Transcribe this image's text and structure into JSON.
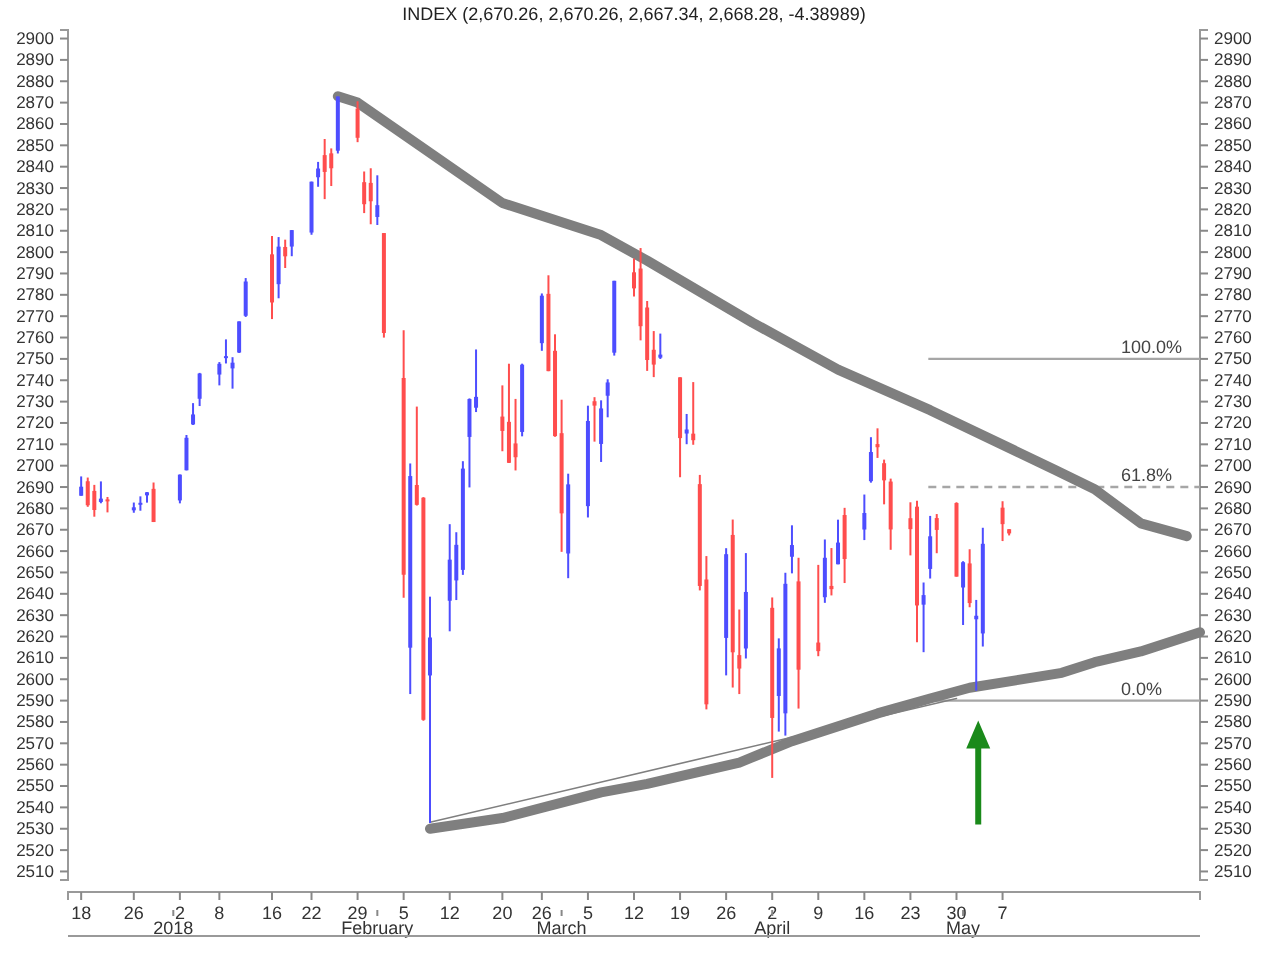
{
  "chart_data": {
    "type": "candlestick",
    "title": "INDEX (2,670.26, 2,670.26, 2,667.34, 2,668.28, -4.38989)",
    "x": [
      "2017-12-18",
      "2017-12-19",
      "2017-12-20",
      "2017-12-21",
      "2017-12-22",
      "2017-12-26",
      "2017-12-27",
      "2017-12-28",
      "2017-12-29",
      "2018-01-02",
      "2018-01-03",
      "2018-01-04",
      "2018-01-05",
      "2018-01-08",
      "2018-01-09",
      "2018-01-10",
      "2018-01-11",
      "2018-01-12",
      "2018-01-16",
      "2018-01-17",
      "2018-01-18",
      "2018-01-19",
      "2018-01-22",
      "2018-01-23",
      "2018-01-24",
      "2018-01-25",
      "2018-01-26",
      "2018-01-29",
      "2018-01-30",
      "2018-01-31",
      "2018-02-01",
      "2018-02-02",
      "2018-02-05",
      "2018-02-06",
      "2018-02-07",
      "2018-02-08",
      "2018-02-09",
      "2018-02-12",
      "2018-02-13",
      "2018-02-14",
      "2018-02-15",
      "2018-02-16",
      "2018-02-20",
      "2018-02-21",
      "2018-02-22",
      "2018-02-23",
      "2018-02-26",
      "2018-02-27",
      "2018-02-28",
      "2018-03-01",
      "2018-03-02",
      "2018-03-05",
      "2018-03-06",
      "2018-03-07",
      "2018-03-08",
      "2018-03-09",
      "2018-03-12",
      "2018-03-13",
      "2018-03-14",
      "2018-03-15",
      "2018-03-16",
      "2018-03-19",
      "2018-03-20",
      "2018-03-21",
      "2018-03-22",
      "2018-03-23",
      "2018-03-26",
      "2018-03-27",
      "2018-03-28",
      "2018-03-29",
      "2018-04-02",
      "2018-04-03",
      "2018-04-04",
      "2018-04-05",
      "2018-04-06",
      "2018-04-09",
      "2018-04-10",
      "2018-04-11",
      "2018-04-12",
      "2018-04-13",
      "2018-04-16",
      "2018-04-17",
      "2018-04-18",
      "2018-04-19",
      "2018-04-20",
      "2018-04-23",
      "2018-04-24",
      "2018-04-25",
      "2018-04-26",
      "2018-04-27",
      "2018-04-30",
      "2018-05-01",
      "2018-05-02",
      "2018-05-03",
      "2018-05-04",
      "2018-05-07",
      "2018-05-08"
    ],
    "ohlc": [
      [
        2685.92,
        2694.97,
        2685.92,
        2690.16
      ],
      [
        2692.71,
        2694.44,
        2680.74,
        2681.47
      ],
      [
        2688.18,
        2691.01,
        2676.11,
        2679.25
      ],
      [
        2683.02,
        2692.64,
        2682.4,
        2684.57
      ],
      [
        2684.22,
        2685.35,
        2678.13,
        2683.34
      ],
      [
        2679.09,
        2682.74,
        2677.96,
        2680.5
      ],
      [
        2682.1,
        2685.64,
        2678.91,
        2682.62
      ],
      [
        2686.1,
        2687.66,
        2682.69,
        2687.54
      ],
      [
        2689.15,
        2692.12,
        2673.61,
        2673.61
      ],
      [
        2683.73,
        2695.89,
        2682.36,
        2695.81
      ],
      [
        2697.85,
        2714.37,
        2697.77,
        2713.06
      ],
      [
        2719.31,
        2729.29,
        2719.07,
        2723.99
      ],
      [
        2731.33,
        2743.45,
        2727.92,
        2743.15
      ],
      [
        2742.67,
        2748.51,
        2737.6,
        2747.71
      ],
      [
        2751.15,
        2759.14,
        2747.86,
        2751.29
      ],
      [
        2745.55,
        2750.8,
        2736.06,
        2748.23
      ],
      [
        2752.97,
        2767.56,
        2752.78,
        2767.56
      ],
      [
        2770.18,
        2787.85,
        2769.64,
        2786.24
      ],
      [
        2798.96,
        2807.54,
        2768.64,
        2776.42
      ],
      [
        2784.99,
        2807.04,
        2778.38,
        2802.56
      ],
      [
        2802.4,
        2805.83,
        2792.56,
        2798.03
      ],
      [
        2802.6,
        2810.33,
        2798.08,
        2810.3
      ],
      [
        2809.16,
        2833.03,
        2808.12,
        2832.97
      ],
      [
        2835.05,
        2842.24,
        2830.59,
        2839.13
      ],
      [
        2845.42,
        2852.97,
        2824.81,
        2837.54
      ],
      [
        2846.24,
        2848.56,
        2830.94,
        2839.25
      ],
      [
        2847.48,
        2872.87,
        2846.18,
        2872.87
      ],
      [
        2867.23,
        2870.62,
        2851.48,
        2853.53
      ],
      [
        2832.74,
        2837.75,
        2818.27,
        2822.43
      ],
      [
        2832.41,
        2839.26,
        2813.04,
        2823.81
      ],
      [
        2816.45,
        2835.96,
        2812.7,
        2821.98
      ],
      [
        2808.92,
        2808.92,
        2759.97,
        2762.13
      ],
      [
        2741.06,
        2763.39,
        2638.17,
        2648.94
      ],
      [
        2614.78,
        2701.04,
        2593.07,
        2695.14
      ],
      [
        2690.95,
        2727.67,
        2681.33,
        2681.66
      ],
      [
        2685.01,
        2685.27,
        2580.56,
        2581.0
      ],
      [
        2601.78,
        2638.67,
        2532.69,
        2619.55
      ],
      [
        2636.75,
        2672.61,
        2622.45,
        2656.0
      ],
      [
        2646.27,
        2668.84,
        2637.08,
        2662.94
      ],
      [
        2651.21,
        2702.1,
        2648.87,
        2698.63
      ],
      [
        2713.46,
        2731.51,
        2689.82,
        2731.2
      ],
      [
        2727.14,
        2754.42,
        2725.11,
        2732.22
      ],
      [
        2722.99,
        2737.6,
        2706.76,
        2716.26
      ],
      [
        2720.53,
        2747.75,
        2701.29,
        2701.33
      ],
      [
        2710.42,
        2731.26,
        2697.77,
        2703.96
      ],
      [
        2715.8,
        2747.76,
        2713.74,
        2747.3
      ],
      [
        2757.37,
        2780.64,
        2753.78,
        2779.6
      ],
      [
        2780.45,
        2789.15,
        2744.22,
        2744.28
      ],
      [
        2753.78,
        2761.52,
        2713.54,
        2713.83
      ],
      [
        2715.22,
        2730.89,
        2659.65,
        2677.67
      ],
      [
        2658.89,
        2696.25,
        2647.32,
        2691.25
      ],
      [
        2681.06,
        2728.09,
        2675.75,
        2720.94
      ],
      [
        2730.18,
        2732.08,
        2711.26,
        2728.12
      ],
      [
        2710.18,
        2730.6,
        2701.74,
        2726.8
      ],
      [
        2732.75,
        2740.45,
        2722.65,
        2738.97
      ],
      [
        2752.91,
        2786.57,
        2751.54,
        2786.57
      ],
      [
        2790.54,
        2796.98,
        2779.26,
        2783.02
      ],
      [
        2792.31,
        2801.9,
        2758.68,
        2765.31
      ],
      [
        2774.06,
        2777.11,
        2744.38,
        2749.48
      ],
      [
        2754.27,
        2763.03,
        2741.47,
        2747.33
      ],
      [
        2750.57,
        2761.85,
        2749.97,
        2752.01
      ],
      [
        2741.38,
        2741.38,
        2694.59,
        2712.92
      ],
      [
        2715.05,
        2724.22,
        2710.05,
        2716.94
      ],
      [
        2714.99,
        2739.14,
        2709.79,
        2711.93
      ],
      [
        2691.36,
        2695.68,
        2641.59,
        2643.69
      ],
      [
        2646.71,
        2657.67,
        2585.89,
        2588.26
      ],
      [
        2619.35,
        2661.36,
        2601.81,
        2658.55
      ],
      [
        2667.57,
        2674.78,
        2596.12,
        2612.62
      ],
      [
        2611.3,
        2632.65,
        2593.06,
        2605.0
      ],
      [
        2614.41,
        2659.07,
        2609.72,
        2640.87
      ],
      [
        2633.45,
        2638.3,
        2553.8,
        2581.88
      ],
      [
        2592.17,
        2619.14,
        2575.49,
        2614.45
      ],
      [
        2584.04,
        2649.86,
        2573.61,
        2644.69
      ],
      [
        2657.36,
        2672.08,
        2649.58,
        2662.84
      ],
      [
        2645.82,
        2656.88,
        2586.27,
        2604.47
      ],
      [
        2617.18,
        2653.55,
        2610.79,
        2613.16
      ],
      [
        2638.41,
        2665.45,
        2635.78,
        2656.87
      ],
      [
        2643.69,
        2661.43,
        2639.25,
        2642.19
      ],
      [
        2653.83,
        2674.72,
        2653.83,
        2663.99
      ],
      [
        2676.9,
        2680.26,
        2645.05,
        2656.3
      ],
      [
        2670.1,
        2686.49,
        2665.16,
        2677.84
      ],
      [
        2692.74,
        2713.34,
        2692.05,
        2706.39
      ],
      [
        2710.11,
        2717.49,
        2703.63,
        2708.64
      ],
      [
        2701.16,
        2702.84,
        2681.9,
        2693.13
      ],
      [
        2692.56,
        2693.94,
        2660.61,
        2670.14
      ],
      [
        2675.4,
        2682.86,
        2657.99,
        2670.29
      ],
      [
        2680.8,
        2683.55,
        2617.32,
        2634.56
      ],
      [
        2634.92,
        2645.3,
        2612.67,
        2639.4
      ],
      [
        2651.65,
        2676.48,
        2647.16,
        2666.94
      ],
      [
        2675.47,
        2677.35,
        2659.01,
        2669.91
      ],
      [
        2682.51,
        2682.87,
        2648.04,
        2648.05
      ],
      [
        2642.96,
        2655.27,
        2625.41,
        2654.8
      ],
      [
        2654.24,
        2660.87,
        2633.71,
        2635.67
      ],
      [
        2628.08,
        2637.14,
        2594.62,
        2629.73
      ],
      [
        2621.45,
        2670.93,
        2615.32,
        2663.42
      ],
      [
        2680.34,
        2683.35,
        2664.7,
        2672.63
      ],
      [
        2670.26,
        2670.26,
        2667.34,
        2668.28
      ]
    ],
    "colors": [
      "#4d4dff",
      "#ff4d4d",
      "#ff4d4d",
      "#4d4dff",
      "#ff4d4d",
      "#4d4dff",
      "#4d4dff",
      "#4d4dff",
      "#ff4d4d",
      "#4d4dff",
      "#4d4dff",
      "#4d4dff",
      "#4d4dff",
      "#4d4dff",
      "#4d4dff",
      "#4d4dff",
      "#4d4dff",
      "#4d4dff",
      "#ff4d4d",
      "#4d4dff",
      "#ff4d4d",
      "#4d4dff",
      "#4d4dff",
      "#4d4dff",
      "#ff4d4d",
      "#ff4d4d",
      "#4d4dff",
      "#ff4d4d",
      "#ff4d4d",
      "#ff4d4d",
      "#4d4dff",
      "#ff4d4d",
      "#ff4d4d",
      "#4d4dff",
      "#ff4d4d",
      "#ff4d4d",
      "#4d4dff",
      "#4d4dff",
      "#4d4dff",
      "#4d4dff",
      "#4d4dff",
      "#4d4dff",
      "#ff4d4d",
      "#ff4d4d",
      "#ff4d4d",
      "#4d4dff",
      "#4d4dff",
      "#ff4d4d",
      "#ff4d4d",
      "#ff4d4d",
      "#4d4dff",
      "#4d4dff",
      "#ff4d4d",
      "#4d4dff",
      "#4d4dff",
      "#4d4dff",
      "#ff4d4d",
      "#ff4d4d",
      "#ff4d4d",
      "#ff4d4d",
      "#4d4dff",
      "#ff4d4d",
      "#4d4dff",
      "#ff4d4d",
      "#ff4d4d",
      "#ff4d4d",
      "#4d4dff",
      "#ff4d4d",
      "#ff4d4d",
      "#4d4dff",
      "#ff4d4d",
      "#4d4dff",
      "#4d4dff",
      "#4d4dff",
      "#ff4d4d",
      "#ff4d4d",
      "#4d4dff",
      "#ff4d4d",
      "#4d4dff",
      "#ff4d4d",
      "#4d4dff",
      "#4d4dff",
      "#ff4d4d",
      "#ff4d4d",
      "#ff4d4d",
      "#ff4d4d",
      "#ff4d4d",
      "#4d4dff",
      "#4d4dff",
      "#ff4d4d",
      "#ff4d4d",
      "#4d4dff",
      "#ff4d4d",
      "#4d4dff",
      "#4d4dff",
      "#ff4d4d",
      "#ff4d4d"
    ],
    "series": [
      {
        "type": "line",
        "color": "#7f7f7f",
        "x": [
          "2018-01-26",
          "2018-01-29",
          "2018-02-20",
          "2018-03-07",
          "2018-03-14",
          "2018-03-30",
          "2018-04-12",
          "2018-04-26",
          "2018-05-15",
          "2018-05-21",
          "2018-05-28",
          "2018-06-04"
        ],
        "values": [
          2873,
          2870,
          2823,
          2808,
          2796,
          2767,
          2745,
          2726,
          2698,
          2689,
          2673,
          2667
        ]
      },
      {
        "type": "line",
        "color": "#7f7f7f",
        "x": [
          "2018-02-09",
          "2018-02-20",
          "2018-03-07",
          "2018-03-14",
          "2018-03-28",
          "2018-04-05",
          "2018-04-18",
          "2018-04-26",
          "2018-05-02",
          "2018-05-16",
          "2018-05-21",
          "2018-05-28",
          "2018-06-06"
        ],
        "values": [
          2530,
          2535,
          2547,
          2551,
          2561,
          2571,
          2584,
          2591,
          2596,
          2603,
          2608,
          2613,
          2622
        ]
      },
      {
        "type": "line",
        "color": "#7f7f7f",
        "x": [
          "2018-02-09",
          "2018-04-30"
        ],
        "values": [
          2533,
          2591
        ]
      }
    ],
    "ref_lines": [
      {
        "axis": "y",
        "value": 2750,
        "color": "#a6a6a6",
        "line_style": "solid"
      },
      {
        "axis": "y",
        "value": 2690,
        "color": "#a6a6a6",
        "line_style": "dashed"
      },
      {
        "axis": "y",
        "value": 2590,
        "color": "#a6a6a6",
        "line_style": "solid"
      }
    ],
    "annotations": [
      {
        "text": "100.0%",
        "x": "2018-05-25",
        "y": 2750
      },
      {
        "text": "61.8%",
        "x": "2018-05-25",
        "y": 2690
      },
      {
        "text": "0.0%",
        "x": "2018-05-25",
        "y": 2590
      }
    ],
    "x2lim": [
      "2017-12-16",
      "2018-06-06"
    ],
    "x2ticks": [
      {
        "value": "2018-01-01",
        "label": "2018"
      },
      {
        "value": "2018-02-01",
        "label": "February"
      },
      {
        "value": "2018-03-01",
        "label": "March"
      },
      {
        "value": "2018-04-02",
        "label": "April"
      },
      {
        "value": "2018-05-01",
        "label": "May"
      }
    ],
    "xlim": [
      "2017-12-16",
      "2018-06-06"
    ],
    "xticks": [
      {
        "value": "2017-12-18",
        "label": "18"
      },
      {
        "value": "2017-12-26",
        "label": "26"
      },
      {
        "value": "2018-01-02",
        "label": "2"
      },
      {
        "value": "2018-01-08",
        "label": "8"
      },
      {
        "value": "2018-01-16",
        "label": "16"
      },
      {
        "value": "2018-01-22",
        "label": "22"
      },
      {
        "value": "2018-01-29",
        "label": "29"
      },
      {
        "value": "2018-02-05",
        "label": "5"
      },
      {
        "value": "2018-02-12",
        "label": "12"
      },
      {
        "value": "2018-02-20",
        "label": "20"
      },
      {
        "value": "2018-02-26",
        "label": "26"
      },
      {
        "value": "2018-03-05",
        "label": "5"
      },
      {
        "value": "2018-03-12",
        "label": "12"
      },
      {
        "value": "2018-03-19",
        "label": "19"
      },
      {
        "value": "2018-03-26",
        "label": "26"
      },
      {
        "value": "2018-04-02",
        "label": "2"
      },
      {
        "value": "2018-04-09",
        "label": "9"
      },
      {
        "value": "2018-04-16",
        "label": "16"
      },
      {
        "value": "2018-04-23",
        "label": "23"
      },
      {
        "value": "2018-04-30",
        "label": "30"
      },
      {
        "value": "2018-05-07",
        "label": "7"
      }
    ],
    "ylim": [
      2506,
      2904
    ],
    "yticks": [
      2510,
      2520,
      2530,
      2540,
      2550,
      2560,
      2570,
      2580,
      2590,
      2600,
      2610,
      2620,
      2630,
      2640,
      2650,
      2660,
      2670,
      2680,
      2690,
      2700,
      2710,
      2720,
      2730,
      2740,
      2750,
      2760,
      2770,
      2780,
      2790,
      2800,
      2810,
      2820,
      2830,
      2840,
      2850,
      2860,
      2870,
      2880,
      2890,
      2900
    ],
    "y2lim": [
      2506,
      2904
    ],
    "y2ticks": [
      2510,
      2520,
      2530,
      2540,
      2550,
      2560,
      2570,
      2580,
      2590,
      2600,
      2610,
      2620,
      2630,
      2640,
      2650,
      2660,
      2670,
      2680,
      2690,
      2700,
      2710,
      2720,
      2730,
      2740,
      2750,
      2760,
      2770,
      2780,
      2790,
      2800,
      2810,
      2820,
      2830,
      2840,
      2850,
      2860,
      2870,
      2880,
      2890,
      2900
    ],
    "tick_labels": true
  }
}
